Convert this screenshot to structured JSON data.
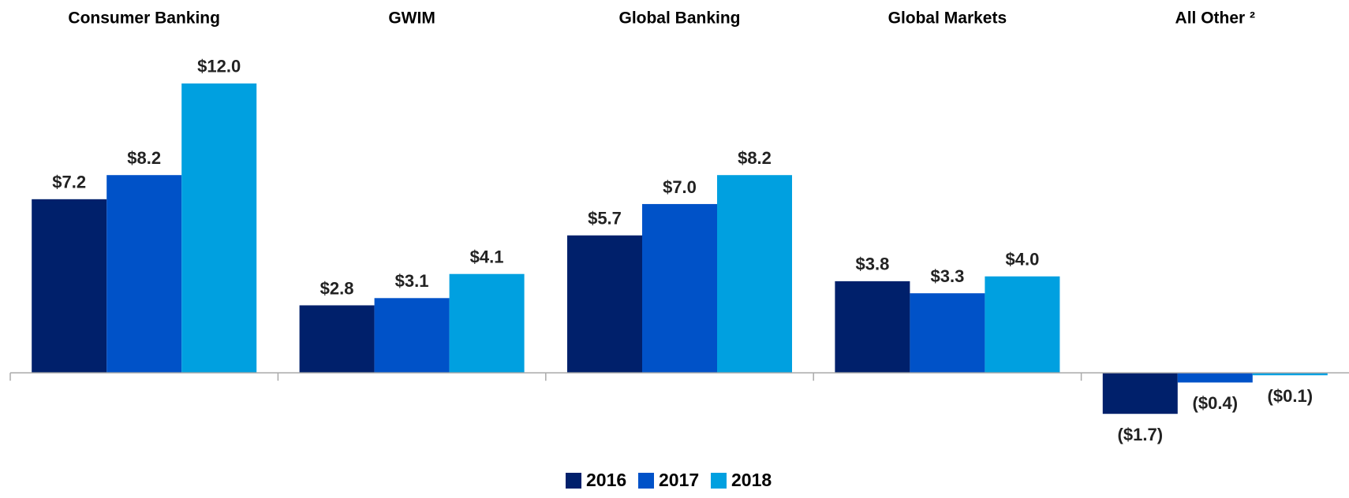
{
  "chart_data": {
    "type": "bar",
    "categories": [
      "Consumer Banking",
      "GWIM",
      "Global Banking",
      "Global Markets",
      "All Other ²"
    ],
    "series": [
      {
        "name": "2016",
        "color": "#00206b",
        "values": [
          7.2,
          2.8,
          5.7,
          3.8,
          -1.7
        ],
        "value_labels": [
          "$7.2",
          "$2.8",
          "$5.7",
          "$3.8",
          "($1.7)"
        ]
      },
      {
        "name": "2017",
        "color": "#0052c8",
        "values": [
          8.2,
          3.1,
          7.0,
          3.3,
          -0.4
        ],
        "value_labels": [
          "$8.2",
          "$3.1",
          "$7.0",
          "$3.3",
          "($0.4)"
        ]
      },
      {
        "name": "2018",
        "color": "#00a0e0",
        "values": [
          12.0,
          4.1,
          8.2,
          4.0,
          -0.1
        ],
        "value_labels": [
          "$12.0",
          "$4.1",
          "$8.2",
          "$4.0",
          "($0.1)"
        ]
      }
    ],
    "ylim": [
      -3,
      13.5
    ],
    "legend": "bottom"
  }
}
